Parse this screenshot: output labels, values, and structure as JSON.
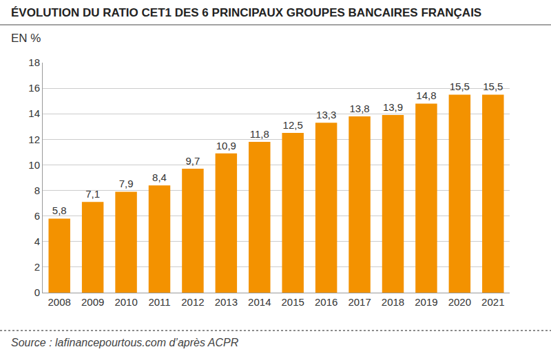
{
  "chart_data": {
    "type": "bar",
    "title": "ÉVOLUTION DU RATIO CET1 DES 6 PRINCIPAUX GROUPES BANCAIRES FRANÇAIS",
    "ylabel": "EN %",
    "source": "Source : lafinancepourtous.com d’après ACPR",
    "categories": [
      "2008",
      "2009",
      "2010",
      "2011",
      "2012",
      "2013",
      "2014",
      "2015",
      "2016",
      "2017",
      "2018",
      "2019",
      "2020",
      "2021"
    ],
    "values": [
      5.8,
      7.1,
      7.9,
      8.4,
      9.7,
      10.9,
      11.8,
      12.5,
      13.3,
      13.8,
      13.9,
      14.8,
      15.5,
      15.5
    ],
    "value_labels": [
      "5,8",
      "7,1",
      "7,9",
      "8,4",
      "9,7",
      "10,9",
      "11,8",
      "12,5",
      "13,3",
      "13,8",
      "13,9",
      "14,8",
      "15,5",
      "15,5"
    ],
    "color": "#f39200",
    "ylim": [
      0,
      18
    ],
    "yticks": [
      0,
      2,
      4,
      6,
      8,
      10,
      12,
      14,
      16,
      18
    ],
    "grid": true,
    "data_labels": true
  }
}
